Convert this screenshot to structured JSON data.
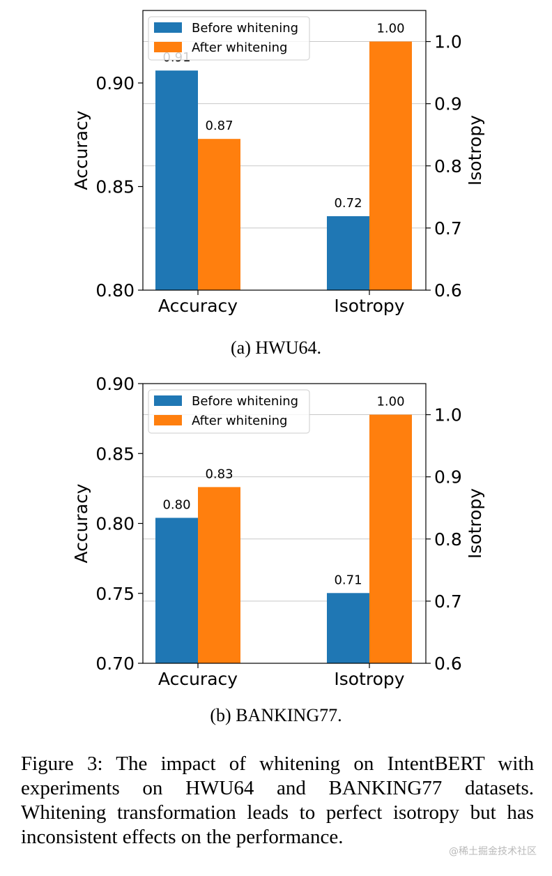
{
  "chart_data": [
    {
      "type": "bar",
      "title": "",
      "categories": [
        "Accuracy",
        "Isotropy"
      ],
      "ylabel_left": "Accuracy",
      "ylabel_right": "Isotropy",
      "ylim_left": [
        0.8,
        0.935
      ],
      "ylim_right": [
        0.6,
        1.05
      ],
      "yticks_left": [
        "0.80",
        "0.85",
        "0.90"
      ],
      "yticks_right": [
        "0.6",
        "0.7",
        "0.8",
        "0.9",
        "1.0"
      ],
      "legend": [
        "Before whitening",
        "After    whitening"
      ],
      "legend_position": "top-left",
      "grid": "horizontal",
      "series": [
        {
          "name": "Before whitening",
          "color": "#1f77b4",
          "values": [
            0.906,
            0.719
          ],
          "labels": [
            "0.91",
            "0.72"
          ]
        },
        {
          "name": "After whitening",
          "color": "#ff7f0e",
          "values": [
            0.873,
            1.0
          ],
          "labels": [
            "0.87",
            "1.00"
          ]
        }
      ]
    },
    {
      "type": "bar",
      "title": "",
      "categories": [
        "Accuracy",
        "Isotropy"
      ],
      "ylabel_left": "Accuracy",
      "ylabel_right": "Isotropy",
      "ylim_left": [
        0.7,
        0.9
      ],
      "ylim_right": [
        0.6,
        1.05
      ],
      "yticks_left": [
        "0.70",
        "0.75",
        "0.80",
        "0.85",
        "0.90"
      ],
      "yticks_right": [
        "0.6",
        "0.7",
        "0.8",
        "0.9",
        "1.0"
      ],
      "legend": [
        "Before whitening",
        "After    whitening"
      ],
      "legend_position": "top-left",
      "grid": "horizontal",
      "series": [
        {
          "name": "Before whitening",
          "color": "#1f77b4",
          "values": [
            0.804,
            0.713
          ],
          "labels": [
            "0.80",
            "0.71"
          ]
        },
        {
          "name": "After whitening",
          "color": "#ff7f0e",
          "values": [
            0.826,
            1.0
          ],
          "labels": [
            "0.83",
            "1.00"
          ]
        }
      ]
    }
  ],
  "subcaptions": {
    "a": "(a) HWU64.",
    "b": "(b) BANKING77."
  },
  "figure_caption": "Figure 3: The impact of whitening on IntentBERT with experiments on HWU64 and BANKING77 datasets. Whitening transformation leads to perfect isotropy but has inconsistent effects on the performance.",
  "watermark": "@稀土掘金技术社区"
}
